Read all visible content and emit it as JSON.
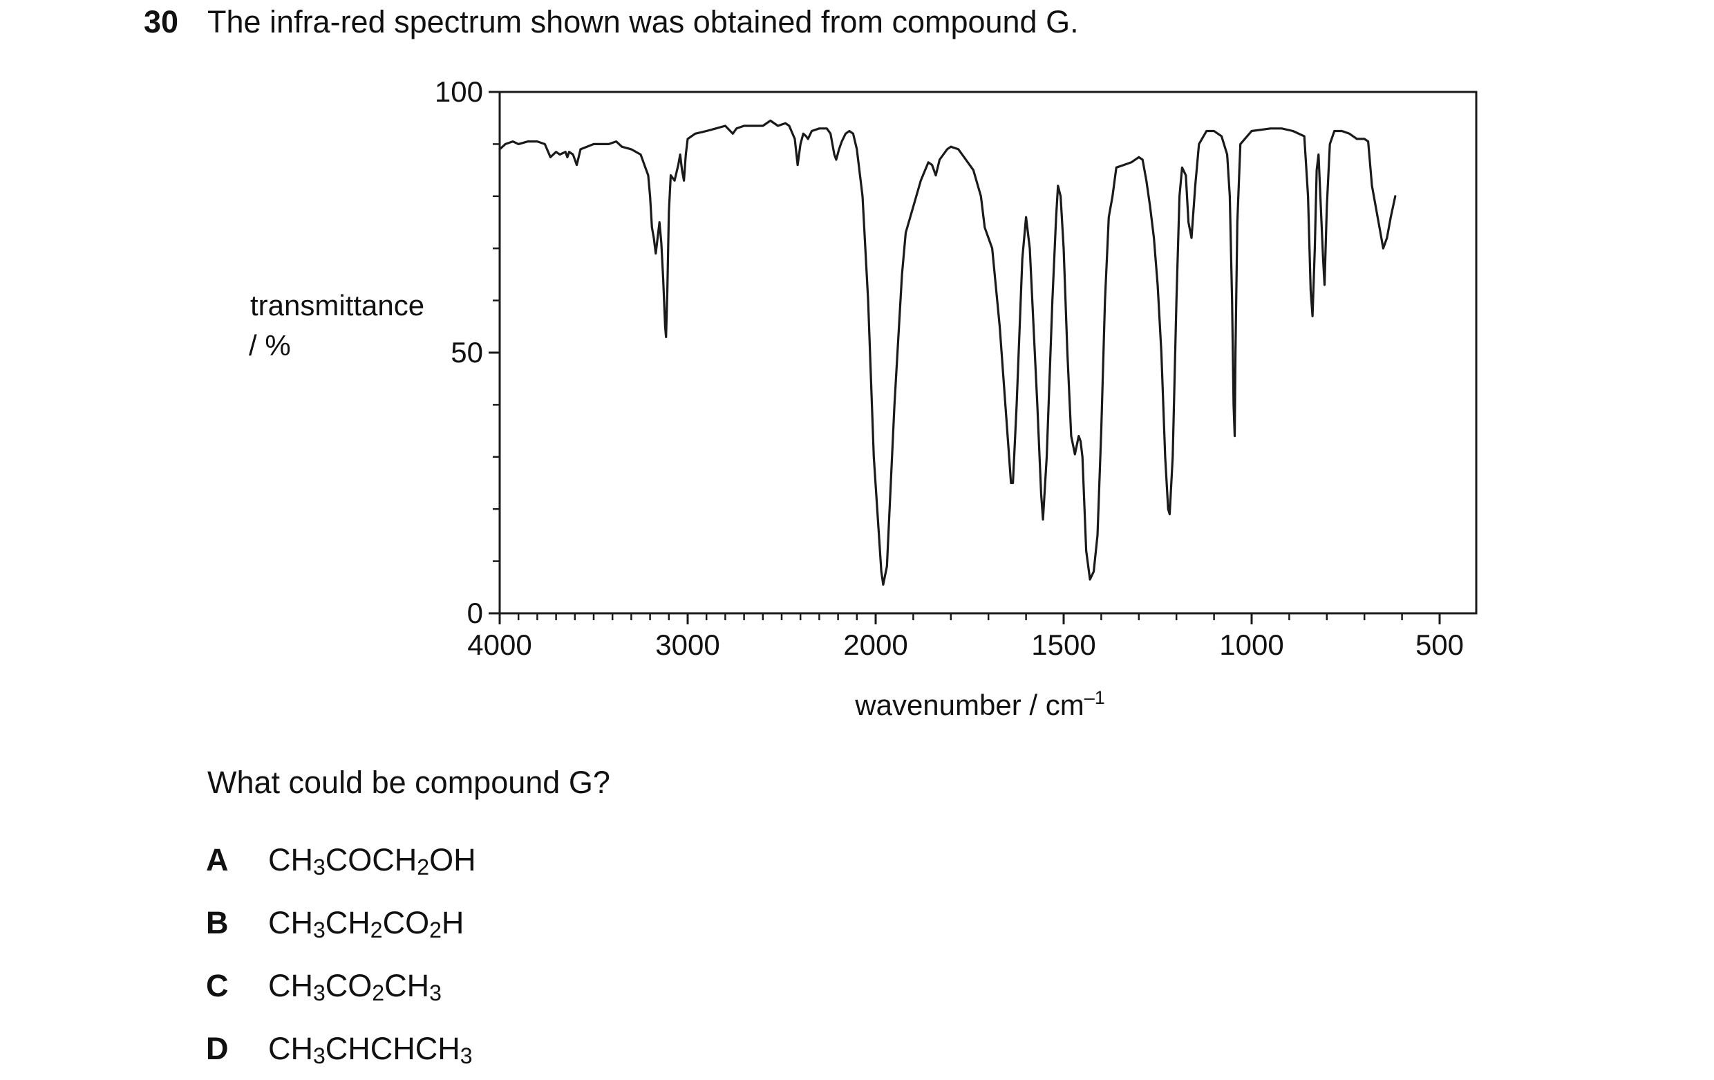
{
  "question": {
    "number": "30",
    "stem": "The infra-red spectrum shown was obtained from compound G.",
    "prompt": "What could be compound G?"
  },
  "options": [
    {
      "letter": "A",
      "formula": [
        [
          "CH",
          ""
        ],
        [
          "3",
          "sub"
        ],
        [
          "COCH",
          ""
        ],
        [
          "2",
          "sub"
        ],
        [
          "OH",
          ""
        ]
      ]
    },
    {
      "letter": "B",
      "formula": [
        [
          "CH",
          ""
        ],
        [
          "3",
          "sub"
        ],
        [
          "CH",
          ""
        ],
        [
          "2",
          "sub"
        ],
        [
          "CO",
          ""
        ],
        [
          "2",
          "sub"
        ],
        [
          "H",
          ""
        ]
      ]
    },
    {
      "letter": "C",
      "formula": [
        [
          "CH",
          ""
        ],
        [
          "3",
          "sub"
        ],
        [
          "CO",
          ""
        ],
        [
          "2",
          "sub"
        ],
        [
          "CH",
          ""
        ],
        [
          "3",
          "sub"
        ]
      ]
    },
    {
      "letter": "D",
      "formula": [
        [
          "CH",
          ""
        ],
        [
          "3",
          "sub"
        ],
        [
          "CHCHCH",
          ""
        ],
        [
          "3",
          "sub"
        ]
      ]
    }
  ],
  "chart_data": {
    "type": "line",
    "ylabel": "transmittance",
    "ylabel_unit": "/ %",
    "xlabel": "wavenumber / cm",
    "xlabel_superscript": "–1",
    "xlim": [
      4000,
      400
    ],
    "ylim": [
      0,
      100
    ],
    "x_reversed": true,
    "y_ticks": [
      0,
      50,
      100
    ],
    "y_minor_step": 10,
    "x_ticks": [
      4000,
      3000,
      2000,
      1500,
      1000,
      500
    ],
    "x_minor_ticks": [
      3900,
      3800,
      3700,
      3600,
      3500,
      3400,
      3300,
      3200,
      3100,
      2900,
      2800,
      2700,
      2600,
      2500,
      2400,
      2300,
      2200,
      2100,
      1900,
      1800,
      1700,
      1600,
      1400,
      1300,
      1200,
      1100,
      900,
      800,
      700,
      600
    ],
    "grid": false,
    "series": [
      {
        "color": "#1a1a1a",
        "points": [
          [
            4000,
            89
          ],
          [
            3970,
            90
          ],
          [
            3930,
            90.5
          ],
          [
            3900,
            90
          ],
          [
            3850,
            90.5
          ],
          [
            3800,
            90.5
          ],
          [
            3760,
            90
          ],
          [
            3730,
            87.5
          ],
          [
            3700,
            88.5
          ],
          [
            3680,
            88
          ],
          [
            3650,
            88.5
          ],
          [
            3640,
            87.5
          ],
          [
            3630,
            88.5
          ],
          [
            3610,
            88
          ],
          [
            3590,
            86
          ],
          [
            3570,
            89
          ],
          [
            3500,
            90
          ],
          [
            3420,
            90
          ],
          [
            3380,
            90.5
          ],
          [
            3350,
            89.5
          ],
          [
            3300,
            89
          ],
          [
            3250,
            88
          ],
          [
            3230,
            86
          ],
          [
            3210,
            84
          ],
          [
            3200,
            80
          ],
          [
            3190,
            74
          ],
          [
            3180,
            72
          ],
          [
            3170,
            69
          ],
          [
            3160,
            72
          ],
          [
            3150,
            75
          ],
          [
            3140,
            71
          ],
          [
            3130,
            64
          ],
          [
            3120,
            55
          ],
          [
            3115,
            53
          ],
          [
            3108,
            62
          ],
          [
            3100,
            77
          ],
          [
            3090,
            84
          ],
          [
            3070,
            83
          ],
          [
            3050,
            86
          ],
          [
            3040,
            88
          ],
          [
            3030,
            85
          ],
          [
            3020,
            83
          ],
          [
            3010,
            88
          ],
          [
            3000,
            91
          ],
          [
            2960,
            92
          ],
          [
            2900,
            92.5
          ],
          [
            2850,
            93
          ],
          [
            2800,
            93.5
          ],
          [
            2760,
            92
          ],
          [
            2740,
            93
          ],
          [
            2700,
            93.5
          ],
          [
            2650,
            93.5
          ],
          [
            2600,
            93.5
          ],
          [
            2560,
            94.5
          ],
          [
            2520,
            93.5
          ],
          [
            2480,
            94
          ],
          [
            2460,
            93.5
          ],
          [
            2430,
            91
          ],
          [
            2415,
            86
          ],
          [
            2400,
            90
          ],
          [
            2385,
            92
          ],
          [
            2370,
            91.5
          ],
          [
            2360,
            91
          ],
          [
            2340,
            92.5
          ],
          [
            2300,
            93
          ],
          [
            2260,
            93
          ],
          [
            2240,
            92
          ],
          [
            2230,
            90
          ],
          [
            2220,
            88
          ],
          [
            2210,
            87
          ],
          [
            2195,
            89
          ],
          [
            2180,
            90.5
          ],
          [
            2160,
            92
          ],
          [
            2140,
            92.5
          ],
          [
            2120,
            92
          ],
          [
            2100,
            89
          ],
          [
            2070,
            80
          ],
          [
            2040,
            60
          ],
          [
            2010,
            30
          ],
          [
            1985,
            8
          ],
          [
            1980,
            5.5
          ],
          [
            1970,
            9
          ],
          [
            1950,
            40
          ],
          [
            1930,
            65
          ],
          [
            1920,
            73
          ],
          [
            1900,
            78
          ],
          [
            1880,
            83
          ],
          [
            1860,
            86.5
          ],
          [
            1850,
            86
          ],
          [
            1840,
            84
          ],
          [
            1830,
            87
          ],
          [
            1810,
            89
          ],
          [
            1800,
            89.5
          ],
          [
            1780,
            89
          ],
          [
            1760,
            87
          ],
          [
            1740,
            85
          ],
          [
            1720,
            80
          ],
          [
            1710,
            74
          ],
          [
            1700,
            72
          ],
          [
            1690,
            70
          ],
          [
            1670,
            55
          ],
          [
            1650,
            35
          ],
          [
            1640,
            25
          ],
          [
            1635,
            25
          ],
          [
            1625,
            40
          ],
          [
            1610,
            68
          ],
          [
            1600,
            76
          ],
          [
            1590,
            70
          ],
          [
            1570,
            40
          ],
          [
            1560,
            23
          ],
          [
            1555,
            18
          ],
          [
            1545,
            30
          ],
          [
            1530,
            60
          ],
          [
            1520,
            76
          ],
          [
            1515,
            82
          ],
          [
            1508,
            80
          ],
          [
            1500,
            70
          ],
          [
            1490,
            50
          ],
          [
            1480,
            34
          ],
          [
            1470,
            30.5
          ],
          [
            1460,
            34
          ],
          [
            1455,
            33
          ],
          [
            1450,
            30
          ],
          [
            1440,
            12
          ],
          [
            1430,
            6.5
          ],
          [
            1420,
            8
          ],
          [
            1410,
            15
          ],
          [
            1400,
            35
          ],
          [
            1390,
            60
          ],
          [
            1380,
            76
          ],
          [
            1370,
            80
          ],
          [
            1360,
            85.5
          ],
          [
            1340,
            86
          ],
          [
            1320,
            86.5
          ],
          [
            1300,
            87.5
          ],
          [
            1290,
            87
          ],
          [
            1280,
            83
          ],
          [
            1270,
            78
          ],
          [
            1260,
            72
          ],
          [
            1250,
            63
          ],
          [
            1240,
            50
          ],
          [
            1230,
            30
          ],
          [
            1222,
            20
          ],
          [
            1218,
            19
          ],
          [
            1210,
            30
          ],
          [
            1200,
            60
          ],
          [
            1192,
            80
          ],
          [
            1185,
            85.5
          ],
          [
            1175,
            84
          ],
          [
            1168,
            75
          ],
          [
            1160,
            72
          ],
          [
            1150,
            82
          ],
          [
            1140,
            90
          ],
          [
            1120,
            92.5
          ],
          [
            1100,
            92.5
          ],
          [
            1080,
            91.5
          ],
          [
            1065,
            88
          ],
          [
            1058,
            80
          ],
          [
            1052,
            60
          ],
          [
            1048,
            40
          ],
          [
            1045,
            34
          ],
          [
            1043,
            50
          ],
          [
            1038,
            75
          ],
          [
            1030,
            90
          ],
          [
            1000,
            92.5
          ],
          [
            950,
            93
          ],
          [
            920,
            93
          ],
          [
            890,
            92.5
          ],
          [
            860,
            91.5
          ],
          [
            850,
            80
          ],
          [
            843,
            62
          ],
          [
            838,
            57
          ],
          [
            832,
            70
          ],
          [
            827,
            85
          ],
          [
            822,
            88
          ],
          [
            816,
            78
          ],
          [
            810,
            68
          ],
          [
            806,
            63
          ],
          [
            800,
            78
          ],
          [
            792,
            90
          ],
          [
            780,
            92.5
          ],
          [
            760,
            92.5
          ],
          [
            740,
            92
          ],
          [
            720,
            91
          ],
          [
            700,
            91
          ],
          [
            690,
            90.5
          ],
          [
            680,
            82
          ],
          [
            660,
            74
          ],
          [
            650,
            70
          ],
          [
            640,
            72
          ],
          [
            630,
            76
          ],
          [
            618,
            80
          ]
        ]
      }
    ]
  }
}
